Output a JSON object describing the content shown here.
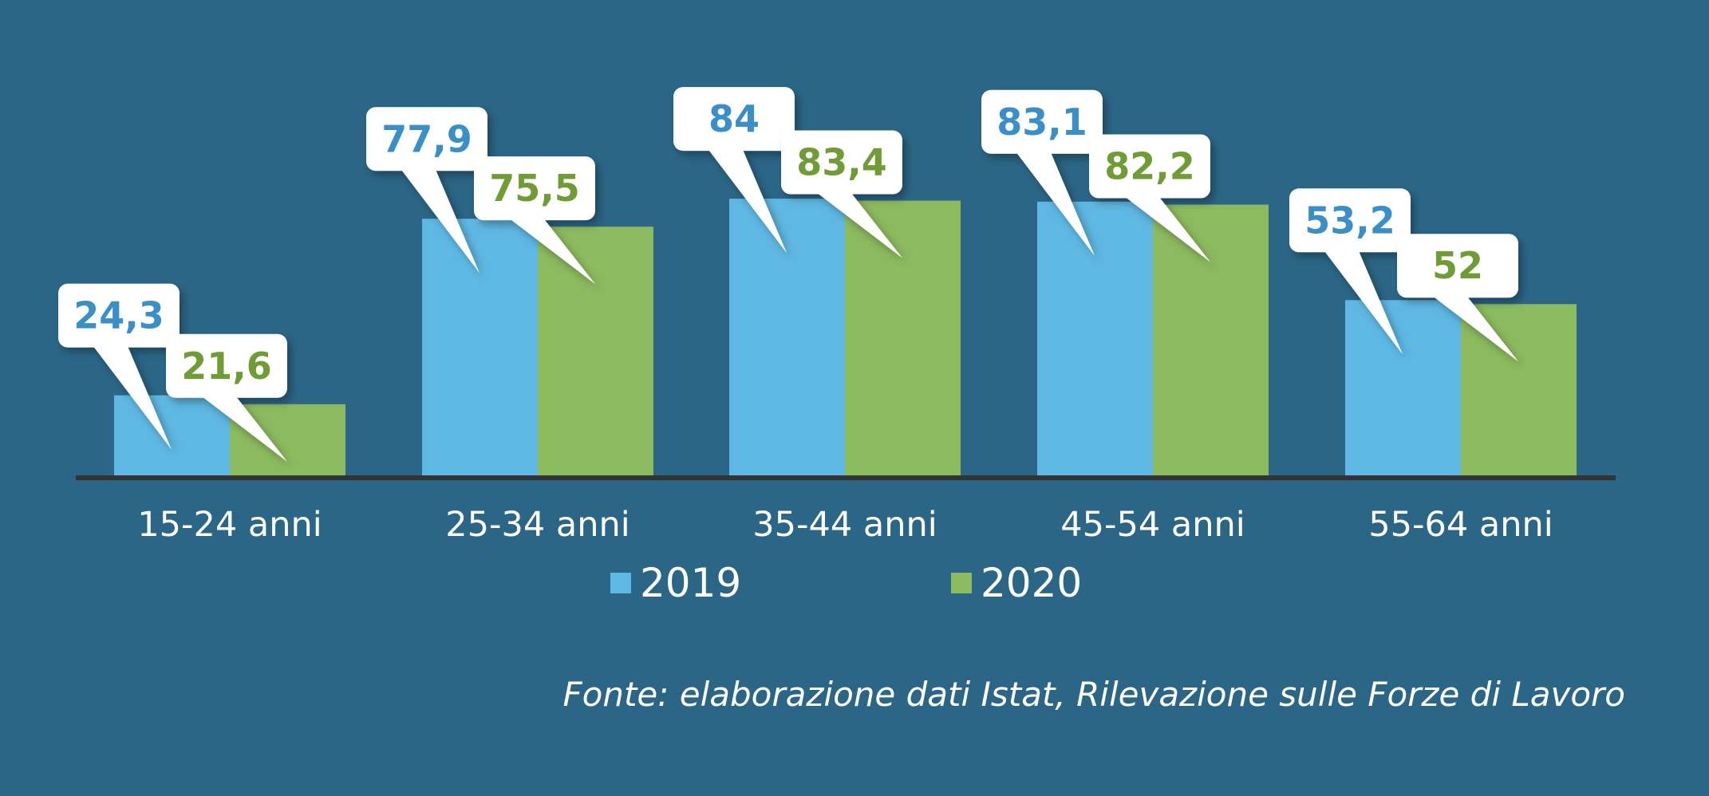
{
  "chart_data": {
    "type": "bar",
    "categories": [
      "15-24 anni",
      "25-34 anni",
      "35-44 anni",
      "45-54 anni",
      "55-64 anni"
    ],
    "series": [
      {
        "name": "2019",
        "values": [
          24.3,
          77.9,
          84,
          83.1,
          53.2
        ],
        "labels": [
          "24,3",
          "77,9",
          "84",
          "83,1",
          "53,2"
        ]
      },
      {
        "name": "2020",
        "values": [
          21.6,
          75.5,
          83.4,
          82.2,
          52
        ],
        "labels": [
          "21,6",
          "75,5",
          "83,4",
          "82,2",
          "52"
        ]
      }
    ],
    "ylim": [
      0,
      100
    ],
    "grid": false,
    "legend": "bottom-center",
    "source": "Fonte: elaborazione dati Istat, Rilevazione sulle Forze di Lavoro"
  },
  "colors": {
    "background": "#2b6686",
    "series_2019": "#5eb8e3",
    "series_2020": "#8cba5e",
    "label_2019": "#3a8fc6",
    "label_2020": "#6f9c34",
    "axis": "#333333",
    "callout": "#ffffff"
  }
}
